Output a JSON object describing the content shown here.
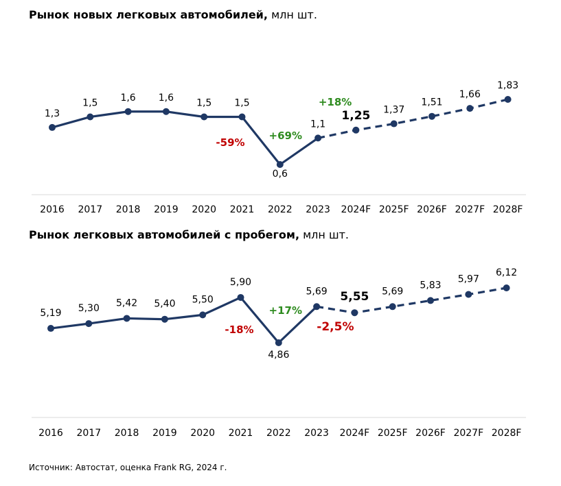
{
  "colors": {
    "line": "#1f3864",
    "growth": "#2e8b1f",
    "decline": "#c00000",
    "axis": "#d9d9d9"
  },
  "source": "Источник: Автостат, оценка Frank RG, 2024 г.",
  "chart_data": [
    {
      "type": "line",
      "title": "Рынок новых легковых автомобилей,",
      "unit": "млн шт.",
      "categories": [
        "2016",
        "2017",
        "2018",
        "2019",
        "2020",
        "2021",
        "2022",
        "2023",
        "2024F",
        "2025F",
        "2026F",
        "2027F",
        "2028F"
      ],
      "values": [
        1.3,
        1.5,
        1.6,
        1.6,
        1.5,
        1.5,
        0.6,
        1.1,
        1.25,
        1.37,
        1.51,
        1.66,
        1.83
      ],
      "labels": [
        "1,3",
        "1,5",
        "1,6",
        "1,6",
        "1,5",
        "1,5",
        "0,6",
        "1,1",
        "1,25",
        "1,37",
        "1,51",
        "1,66",
        "1,83"
      ],
      "forecast_from_index": 7,
      "highlight_index": 8,
      "ylim": [
        0.4,
        1.9
      ],
      "annotations": [
        {
          "text": "-59%",
          "color": "decline",
          "at_index": 5
        },
        {
          "text": "+69%",
          "color": "growth",
          "at_index": 6
        },
        {
          "text": "+18%",
          "color": "growth",
          "at_index": 7
        }
      ]
    },
    {
      "type": "line",
      "title": "Рынок легковых автомобилей с пробегом,",
      "unit": "млн шт.",
      "categories": [
        "2016",
        "2017",
        "2018",
        "2019",
        "2020",
        "2021",
        "2022",
        "2023",
        "2024F",
        "2025F",
        "2026F",
        "2027F",
        "2028F"
      ],
      "values": [
        5.19,
        5.3,
        5.42,
        5.4,
        5.5,
        5.9,
        4.86,
        5.69,
        5.55,
        5.69,
        5.83,
        5.97,
        6.12
      ],
      "labels": [
        "5,19",
        "5,30",
        "5,42",
        "5,40",
        "5,50",
        "5,90",
        "4,86",
        "5,69",
        "5,55",
        "5,69",
        "5,83",
        "5,97",
        "6,12"
      ],
      "forecast_from_index": 7,
      "highlight_index": 8,
      "ylim": [
        4.7,
        6.3
      ],
      "annotations": [
        {
          "text": "-18%",
          "color": "decline",
          "at_index": 5
        },
        {
          "text": "+17%",
          "color": "growth",
          "at_index": 6
        },
        {
          "text": "-2,5%",
          "color": "decline",
          "at_index": 8
        }
      ]
    }
  ]
}
